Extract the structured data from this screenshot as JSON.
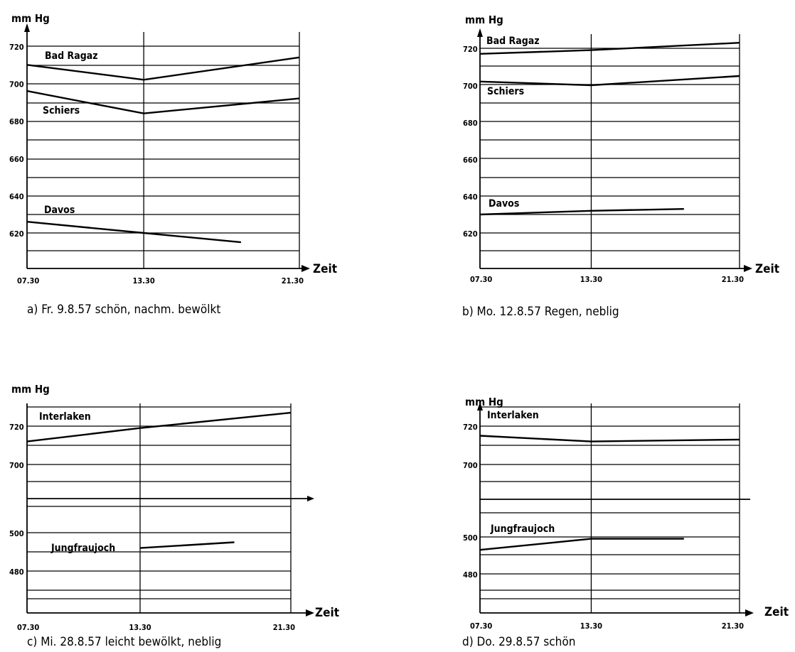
{
  "chart_data": [
    {
      "id": "a",
      "type": "line",
      "ylabel": "mm Hg",
      "xlabel": "Zeit",
      "caption": "a) Fr. 9.8.57 schön, nachm. bewölkt",
      "x_ticks": [
        "07.30",
        "13.30",
        "21.30"
      ],
      "y_ticks": [
        {
          "value": 720,
          "label": "720"
        },
        {
          "value": 700,
          "label": "700"
        },
        {
          "value": 680,
          "label": "680"
        },
        {
          "value": 660,
          "label": "660"
        },
        {
          "value": 640,
          "label": "640"
        },
        {
          "value": 620,
          "label": "620"
        }
      ],
      "ylim": [
        600,
        730
      ],
      "series": [
        {
          "name": "Bad Ragaz",
          "points": [
            [
              "07.30",
              710
            ],
            [
              "13.30",
              702
            ],
            [
              "21.30",
              714
            ]
          ]
        },
        {
          "name": "Schiers",
          "points": [
            [
              "07.30",
              696
            ],
            [
              "13.30",
              684
            ],
            [
              "21.30",
              692
            ]
          ]
        },
        {
          "name": "Davos",
          "points": [
            [
              "07.30",
              626
            ],
            [
              "13.30",
              620
            ],
            [
              "18.30",
              615
            ]
          ]
        }
      ]
    },
    {
      "id": "b",
      "type": "line",
      "ylabel": "mm Hg",
      "xlabel": "Zeit",
      "caption": "b) Mo. 12.8.57 Regen, neblig",
      "x_ticks": [
        "07.30",
        "13.30",
        "21.30"
      ],
      "y_ticks": [
        {
          "value": 720,
          "label": "720"
        },
        {
          "value": 700,
          "label": "700"
        },
        {
          "value": 680,
          "label": "680"
        },
        {
          "value": 660,
          "label": "660"
        },
        {
          "value": 640,
          "label": "640"
        },
        {
          "value": 620,
          "label": "620"
        }
      ],
      "ylim": [
        600,
        730
      ],
      "series": [
        {
          "name": "Bad Ragaz",
          "points": [
            [
              "07.30",
              717
            ],
            [
              "13.30",
              719
            ],
            [
              "21.30",
              723
            ]
          ]
        },
        {
          "name": "Schiers",
          "points": [
            [
              "07.30",
              702
            ],
            [
              "13.30",
              700
            ],
            [
              "21.30",
              705
            ]
          ]
        },
        {
          "name": "Davos",
          "points": [
            [
              "07.30",
              630
            ],
            [
              "13.30",
              632
            ],
            [
              "18.30",
              633
            ]
          ]
        }
      ]
    },
    {
      "id": "c",
      "type": "line",
      "ylabel": "mm Hg",
      "xlabel": "Zeit",
      "caption": "c) Mi. 28.8.57 leicht bewölkt, neblig",
      "x_ticks": [
        "07.30",
        "13.30",
        "21.30"
      ],
      "y_ticks": [
        {
          "value": 720,
          "label": "720"
        },
        {
          "value": 700,
          "label": "700"
        },
        {
          "value": 500,
          "label": "500"
        },
        {
          "value": 480,
          "label": "480"
        }
      ],
      "broken_axis": true,
      "upper_ylim": [
        680,
        730
      ],
      "lower_ylim": [
        470,
        510
      ],
      "series": [
        {
          "name": "Interlaken",
          "points": [
            [
              "07.30",
              712
            ],
            [
              "13.30",
              719
            ],
            [
              "21.30",
              727
            ]
          ]
        },
        {
          "name": "Jungfraujoch",
          "points": [
            [
              "13.30",
              492
            ],
            [
              "18.30",
              495
            ]
          ]
        }
      ]
    },
    {
      "id": "d",
      "type": "line",
      "ylabel": "mm Hg",
      "xlabel": "Zeit",
      "caption": "d) Do. 29.8.57 schön",
      "x_ticks": [
        "07.30",
        "13.30",
        "21.30"
      ],
      "y_ticks": [
        {
          "value": 720,
          "label": "720"
        },
        {
          "value": 700,
          "label": "700"
        },
        {
          "value": 500,
          "label": "500"
        },
        {
          "value": 480,
          "label": "480"
        }
      ],
      "broken_axis": true,
      "upper_ylim": [
        680,
        730
      ],
      "lower_ylim": [
        470,
        510
      ],
      "series": [
        {
          "name": "Interlaken",
          "points": [
            [
              "07.30",
              715
            ],
            [
              "13.30",
              712
            ],
            [
              "21.30",
              713
            ]
          ]
        },
        {
          "name": "Jungfraujoch",
          "points": [
            [
              "07.30",
              493
            ],
            [
              "13.30",
              499
            ],
            [
              "18.30",
              499
            ]
          ]
        }
      ]
    }
  ]
}
